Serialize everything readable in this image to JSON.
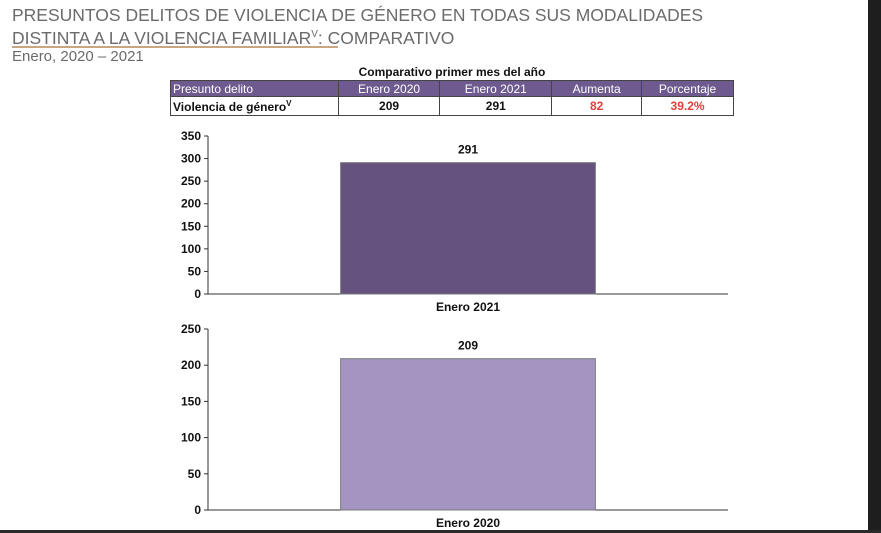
{
  "header": {
    "title_line1": "PRESUNTOS DELITOS DE VIOLENCIA DE GÉNERO EN TODAS SUS MODALIDADES",
    "title_line2": "DISTINTA A LA VIOLENCIA FAMILIAR",
    "title_sup": "V",
    "title_line2_suffix": ": COMPARATIVO",
    "subtitle": "Enero, 2020 – 2021"
  },
  "table": {
    "caption": "Comparativo primer mes del año",
    "headers": [
      "Presunto delito",
      "Enero 2020",
      "Enero 2021",
      "Aumenta",
      "Porcentaje"
    ],
    "row": {
      "delito": "Violencia de género",
      "delito_sup": "V",
      "enero_2020": "209",
      "enero_2021": "291",
      "aumenta": "82",
      "porcentaje": "39.2%"
    },
    "highlight_color": "#e0403a"
  },
  "chart_data": [
    {
      "type": "bar",
      "categories": [
        "Enero 2021"
      ],
      "values": [
        291
      ],
      "ylim": [
        0,
        350
      ],
      "yticks": [
        0,
        50,
        100,
        150,
        200,
        250,
        300,
        350
      ],
      "bar_color": "#65527f",
      "grid": false
    },
    {
      "type": "bar",
      "categories": [
        "Enero 2020"
      ],
      "values": [
        209
      ],
      "ylim": [
        0,
        250
      ],
      "yticks": [
        0,
        50,
        100,
        150,
        200,
        250
      ],
      "bar_color": "#a494c2",
      "grid": false
    }
  ]
}
